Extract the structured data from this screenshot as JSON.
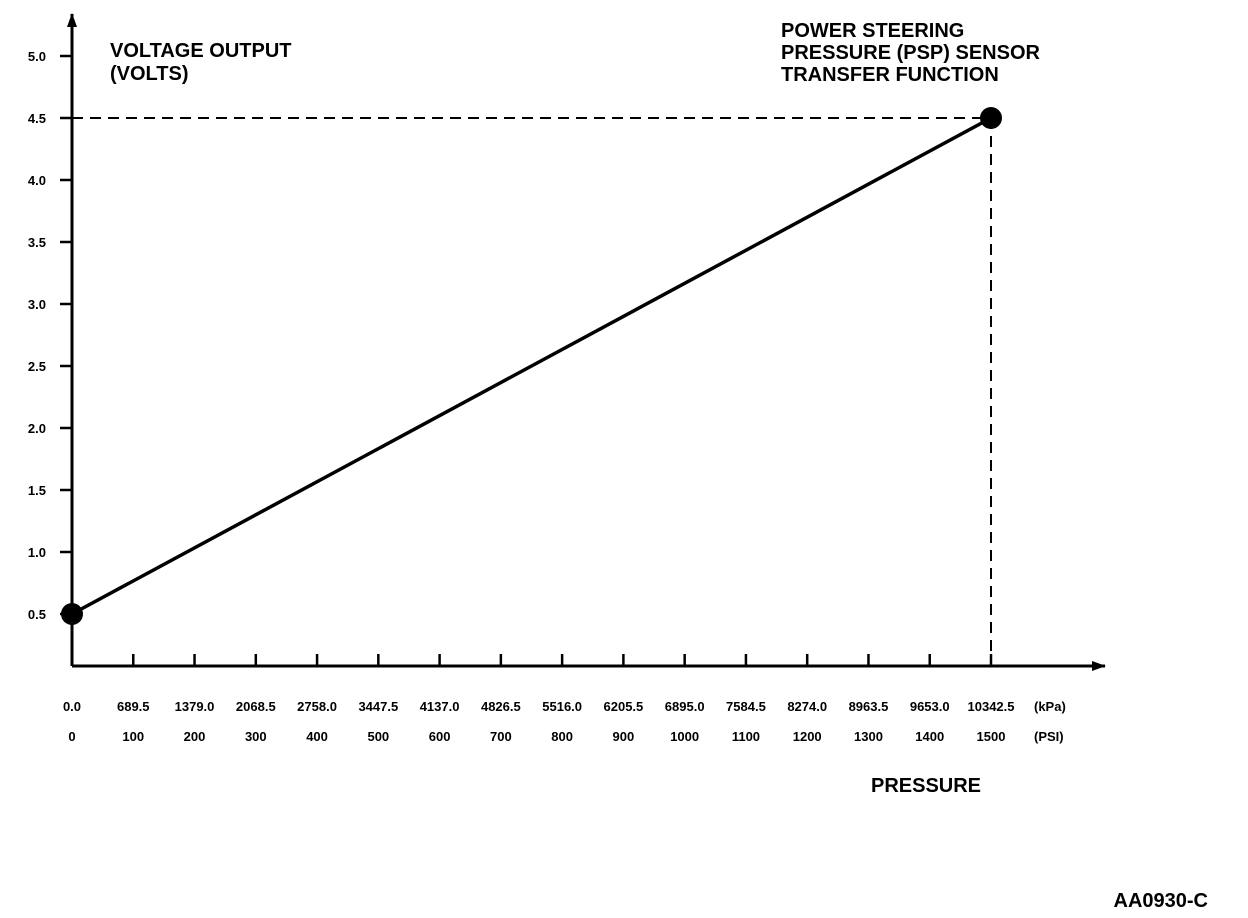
{
  "chart_data": {
    "type": "line",
    "title": [
      "POWER STEERING",
      "PRESSURE (PSP) SENSOR",
      "TRANSFER FUNCTION"
    ],
    "ylabel": [
      "VOLTAGE OUTPUT",
      "(VOLTS)"
    ],
    "xlabel": "PRESSURE",
    "ylim": [
      0,
      5.0
    ],
    "xlim": [
      0,
      1500
    ],
    "y_ticks": [
      "0.5",
      "1.0",
      "1.5",
      "2.0",
      "2.5",
      "3.0",
      "3.5",
      "4.0",
      "4.5",
      "5.0"
    ],
    "x_ticks_kpa": [
      "0.0",
      "689.5",
      "1379.0",
      "2068.5",
      "2758.0",
      "3447.5",
      "4137.0",
      "4826.5",
      "5516.0",
      "6205.5",
      "6895.0",
      "7584.5",
      "8274.0",
      "8963.5",
      "9653.0",
      "10342.5"
    ],
    "x_ticks_psi": [
      "0",
      "100",
      "200",
      "300",
      "400",
      "500",
      "600",
      "700",
      "800",
      "900",
      "1000",
      "1100",
      "1200",
      "1300",
      "1400",
      "1500"
    ],
    "x_unit_kpa": "(kPa)",
    "x_unit_psi": "(PSI)",
    "series": [
      {
        "x": [
          0,
          1500
        ],
        "y": [
          0.5,
          4.5
        ]
      }
    ],
    "reference_lines": {
      "y": 4.5,
      "x": 1500
    },
    "grid": false
  },
  "figure_code": "AA0930-C"
}
